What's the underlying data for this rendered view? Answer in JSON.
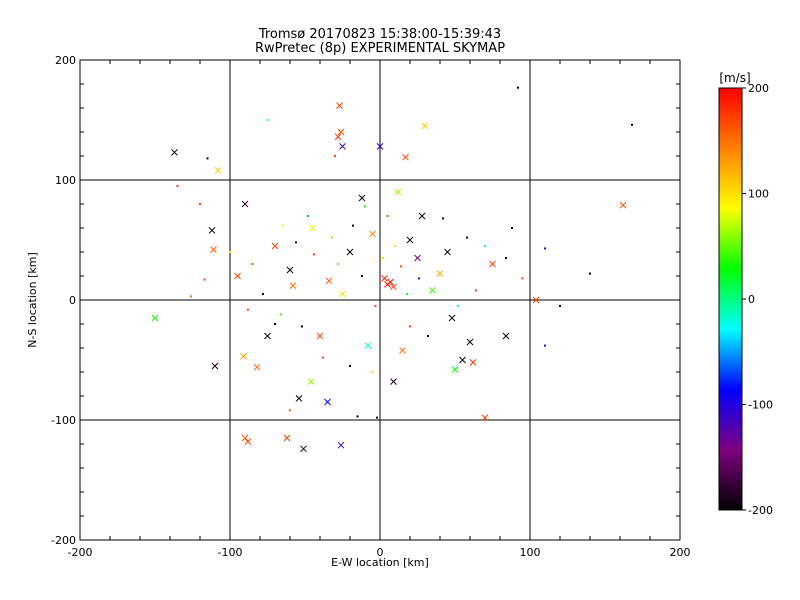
{
  "chart_data": {
    "type": "scatter",
    "title": "Tromsø 20170823 15:38:00-15:39:43",
    "subtitle": "RwPretec (8p) EXPERIMENTAL SKYMAP",
    "xlabel": "E-W location [km]",
    "ylabel": "N-S location [km]",
    "xlim": [
      -200,
      200
    ],
    "ylim": [
      -200,
      200
    ],
    "xticks": [
      "-200",
      "-100",
      "0",
      "100",
      "200"
    ],
    "yticks": [
      "-200",
      "-100",
      "0",
      "100",
      "200"
    ],
    "grid": true,
    "colorbar": {
      "label": "[m/s]",
      "range": [
        -200,
        200
      ],
      "ticks": [
        "200",
        "100",
        "0",
        "-100",
        "-200"
      ],
      "colors": [
        "#000000",
        "#800080",
        "#0000ff",
        "#00ffff",
        "#00ff00",
        "#ffff00",
        "#ff8000",
        "#ff0000"
      ]
    },
    "markers": [
      "x",
      "dot"
    ],
    "points": [
      [
        -27,
        162,
        170,
        "x"
      ],
      [
        -26,
        140,
        165,
        "x"
      ],
      [
        -28,
        136,
        180,
        "x"
      ],
      [
        30,
        145,
        110,
        "x"
      ],
      [
        -137,
        123,
        -190,
        "x"
      ],
      [
        -108,
        108,
        110,
        "x"
      ],
      [
        0,
        128,
        -100,
        "x"
      ],
      [
        17,
        119,
        170,
        "x"
      ],
      [
        -25,
        128,
        -120,
        "x"
      ],
      [
        162,
        79,
        170,
        "x"
      ],
      [
        -90,
        80,
        -180,
        "x"
      ],
      [
        -112,
        58,
        -180,
        "x"
      ],
      [
        -111,
        42,
        160,
        "x"
      ],
      [
        -150,
        -15,
        30,
        "x"
      ],
      [
        -110,
        -55,
        -190,
        "x"
      ],
      [
        -91,
        -47,
        130,
        "x"
      ],
      [
        -82,
        -56,
        160,
        "x"
      ],
      [
        -46,
        -68,
        60,
        "x"
      ],
      [
        -54,
        -82,
        -190,
        "x"
      ],
      [
        -35,
        -85,
        -90,
        "x"
      ],
      [
        -90,
        -115,
        160,
        "x"
      ],
      [
        -88,
        -118,
        170,
        "x"
      ],
      [
        -51,
        -124,
        -190,
        "x"
      ],
      [
        -62,
        -115,
        170,
        "x"
      ],
      [
        -26,
        -121,
        -110,
        "x"
      ],
      [
        70,
        -98,
        170,
        "x"
      ],
      [
        9,
        -68,
        -190,
        "x"
      ],
      [
        84,
        -30,
        -190,
        "x"
      ],
      [
        104,
        0,
        170,
        "x"
      ],
      [
        62,
        -52,
        180,
        "x"
      ],
      [
        50,
        -58,
        30,
        "x"
      ],
      [
        55,
        -50,
        -190,
        "x"
      ],
      [
        5,
        13,
        190,
        "x"
      ],
      [
        7,
        15,
        190,
        "x"
      ],
      [
        3,
        18,
        185,
        "x"
      ],
      [
        9,
        11,
        175,
        "x"
      ],
      [
        -20,
        40,
        -190,
        "x"
      ],
      [
        -34,
        16,
        165,
        "x"
      ],
      [
        -58,
        12,
        150,
        "x"
      ],
      [
        20,
        50,
        -190,
        "x"
      ],
      [
        25,
        35,
        -150,
        "x"
      ],
      [
        40,
        22,
        120,
        "x"
      ],
      [
        -70,
        45,
        170,
        "x"
      ],
      [
        -45,
        60,
        80,
        "x"
      ],
      [
        35,
        8,
        40,
        "x"
      ],
      [
        48,
        -15,
        -190,
        "x"
      ],
      [
        -40,
        -30,
        170,
        "x"
      ],
      [
        60,
        -35,
        -190,
        "x"
      ],
      [
        -75,
        -30,
        -190,
        "x"
      ],
      [
        -8,
        -38,
        -20,
        "x"
      ],
      [
        15,
        -42,
        150,
        "x"
      ],
      [
        28,
        70,
        -190,
        "x"
      ],
      [
        -12,
        85,
        -190,
        "x"
      ],
      [
        12,
        90,
        60,
        "x"
      ],
      [
        -60,
        25,
        -190,
        "x"
      ],
      [
        -25,
        5,
        100,
        "x"
      ],
      [
        45,
        40,
        -190,
        "x"
      ],
      [
        75,
        30,
        170,
        "x"
      ],
      [
        -5,
        55,
        140,
        "x"
      ],
      [
        -95,
        20,
        170,
        "x"
      ],
      [
        92,
        177,
        -200,
        "dot"
      ],
      [
        168,
        146,
        -200,
        "dot"
      ],
      [
        -115,
        118,
        -200,
        "dot"
      ],
      [
        -135,
        95,
        170,
        "dot"
      ],
      [
        -120,
        80,
        170,
        "dot"
      ],
      [
        -126,
        3,
        150,
        "dot"
      ],
      [
        -117,
        17,
        170,
        "dot"
      ],
      [
        110,
        43,
        -100,
        "dot"
      ],
      [
        120,
        -5,
        -200,
        "dot"
      ],
      [
        110,
        -38,
        -80,
        "dot"
      ],
      [
        140,
        22,
        -200,
        "dot"
      ],
      [
        -15,
        -97,
        -200,
        "dot"
      ],
      [
        -2,
        -98,
        -190,
        "dot"
      ],
      [
        -60,
        -92,
        160,
        "dot"
      ],
      [
        -75,
        150,
        -20,
        "dot"
      ],
      [
        -30,
        120,
        170,
        "dot"
      ],
      [
        -65,
        62,
        90,
        "dot"
      ],
      [
        -48,
        70,
        -50,
        "dot"
      ],
      [
        -10,
        78,
        30,
        "dot"
      ],
      [
        5,
        70,
        170,
        "dot"
      ],
      [
        42,
        68,
        -190,
        "dot"
      ],
      [
        58,
        52,
        -190,
        "dot"
      ],
      [
        70,
        45,
        -10,
        "dot"
      ],
      [
        84,
        35,
        -190,
        "dot"
      ],
      [
        95,
        18,
        170,
        "dot"
      ],
      [
        88,
        60,
        -190,
        "dot"
      ],
      [
        -100,
        40,
        90,
        "dot"
      ],
      [
        -85,
        30,
        170,
        "dot"
      ],
      [
        -78,
        5,
        -190,
        "dot"
      ],
      [
        -66,
        -12,
        40,
        "dot"
      ],
      [
        -52,
        -22,
        -190,
        "dot"
      ],
      [
        -38,
        -48,
        170,
        "dot"
      ],
      [
        -20,
        -55,
        -190,
        "dot"
      ],
      [
        -5,
        -60,
        110,
        "dot"
      ],
      [
        20,
        -22,
        170,
        "dot"
      ],
      [
        32,
        -30,
        -190,
        "dot"
      ],
      [
        52,
        -5,
        -20,
        "dot"
      ],
      [
        64,
        8,
        170,
        "dot"
      ],
      [
        -28,
        30,
        50,
        "dot"
      ],
      [
        -12,
        20,
        -190,
        "dot"
      ],
      [
        2,
        35,
        70,
        "dot"
      ],
      [
        14,
        28,
        170,
        "dot"
      ],
      [
        26,
        18,
        -120,
        "dot"
      ],
      [
        -44,
        38,
        170,
        "dot"
      ],
      [
        -56,
        48,
        -190,
        "dot"
      ],
      [
        -32,
        52,
        120,
        "dot"
      ],
      [
        -18,
        62,
        -190,
        "dot"
      ],
      [
        10,
        45,
        100,
        "dot"
      ],
      [
        -88,
        -8,
        170,
        "dot"
      ],
      [
        -70,
        -20,
        -190,
        "dot"
      ],
      [
        18,
        5,
        10,
        "dot"
      ],
      [
        -3,
        -5,
        170,
        "dot"
      ]
    ]
  }
}
